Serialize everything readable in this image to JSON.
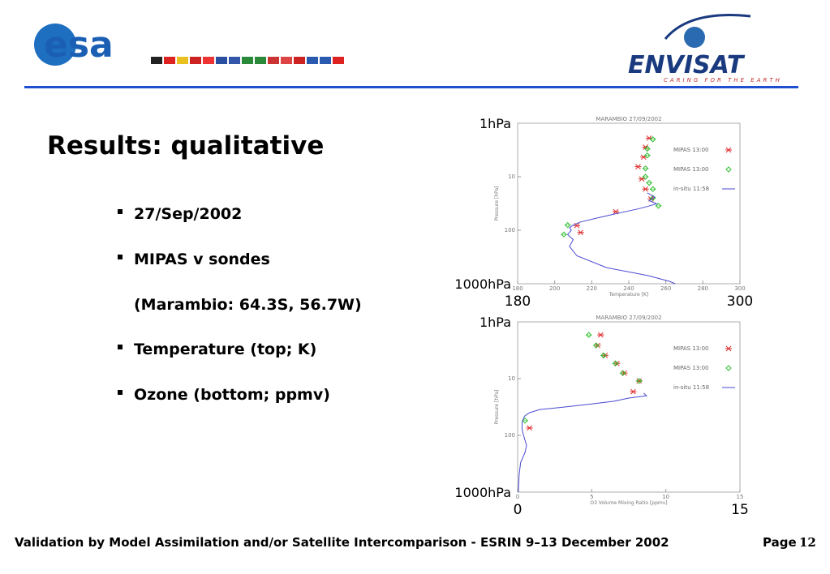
{
  "header": {
    "logo_left": "esa",
    "logo_right": "ENVISAT",
    "tagline": "CARING FOR THE EARTH"
  },
  "slide": {
    "title": "Results: qualitative",
    "bullets": [
      "27/Sep/2002",
      "MIPAS v sondes",
      "Temperature (top; K)",
      "Ozone (bottom; ppmv)"
    ],
    "note": "(Marambio: 64.3S, 56.7W)"
  },
  "footer": {
    "text": "Validation by Model Assimilation and/or Satellite Intercomparison - ESRIN 9–13 December 2002",
    "page_label": "Page",
    "page_number": "12"
  },
  "chart_data": [
    {
      "type": "scatter",
      "title": "MARAMBIO 27/09/2002",
      "xlabel": "Temperature [K]",
      "ylabel": "Pressure [hPa]",
      "xlim": [
        180,
        300
      ],
      "ylim": [
        1000,
        1
      ],
      "log_y": true,
      "xticks": [
        180,
        300
      ],
      "yticks": [
        {
          "value": 1,
          "label": "1hPa"
        },
        {
          "value": 1000,
          "label": "1000hPa"
        }
      ],
      "inner_xticks": [
        180,
        200,
        220,
        240,
        260,
        280,
        300
      ],
      "inner_yticks": [
        10,
        100
      ],
      "series": [
        {
          "name": "MIPAS 13:00",
          "color": "#e03030",
          "marker": "star",
          "x": [
            251,
            249,
            248,
            245,
            247,
            249,
            252,
            233,
            212,
            214
          ],
          "values": [
            1.9,
            2.8,
            4.3,
            6.5,
            11,
            17,
            26,
            45,
            82,
            110
          ]
        },
        {
          "name": "MIPAS 13:00",
          "color": "#30c030",
          "marker": "diamond",
          "x": [
            253,
            250,
            250,
            249,
            249,
            251,
            253,
            253,
            256,
            207,
            205
          ],
          "values": [
            2,
            3,
            4,
            7,
            10,
            13,
            17,
            25,
            35,
            80,
            120
          ]
        },
        {
          "name": "in-situ 11:58",
          "color": "#4a4ad0",
          "marker": "line",
          "x": [
            250,
            254,
            251,
            255,
            250,
            245,
            232,
            222,
            214,
            210,
            208,
            209,
            207,
            210,
            208,
            212,
            228,
            250,
            262,
            265
          ],
          "values": [
            20,
            24,
            28,
            32,
            36,
            40,
            50,
            60,
            70,
            80,
            90,
            100,
            120,
            150,
            200,
            300,
            500,
            700,
            900,
            1000
          ]
        }
      ]
    },
    {
      "type": "scatter",
      "title": "MARAMBIO 27/09/2002",
      "xlabel": "O3 Volume Mixing Ratio [ppmv]",
      "ylabel": "Pressure [hPa]",
      "xlim": [
        0,
        15
      ],
      "ylim": [
        1000,
        1
      ],
      "log_y": true,
      "xticks": [
        0,
        15
      ],
      "yticks": [
        {
          "value": 1,
          "label": "1hPa"
        },
        {
          "value": 1000,
          "label": "1000hPa"
        }
      ],
      "inner_xticks": [
        0,
        5,
        10,
        15
      ],
      "inner_yticks": [
        10,
        100
      ],
      "series": [
        {
          "name": "MIPAS 13:00",
          "color": "#e03030",
          "marker": "star",
          "x": [
            5.6,
            5.4,
            5.9,
            6.7,
            7.2,
            8.2,
            7.8,
            0.8
          ],
          "values": [
            1.7,
            2.6,
            3.9,
            5.4,
            8,
            11,
            17,
            74
          ]
        },
        {
          "name": "MIPAS 13:00",
          "color": "#30c030",
          "marker": "diamond",
          "x": [
            4.8,
            5.3,
            5.8,
            6.6,
            7.1,
            8.2,
            0.5
          ],
          "values": [
            1.7,
            2.6,
            3.9,
            5.4,
            8,
            11,
            55
          ]
        },
        {
          "name": "in-situ 11:58",
          "color": "#4a4ad0",
          "marker": "line",
          "x": [
            8.5,
            8.7,
            7.5,
            6.5,
            5,
            3,
            1.5,
            0.8,
            0.5,
            0.4,
            0.3,
            0.3,
            0.4,
            0.6,
            0.5,
            0.2,
            0.1,
            0.05
          ],
          "values": [
            18,
            20,
            22,
            25,
            28,
            32,
            35,
            40,
            45,
            50,
            60,
            80,
            100,
            150,
            200,
            300,
            500,
            1000
          ]
        }
      ]
    }
  ]
}
